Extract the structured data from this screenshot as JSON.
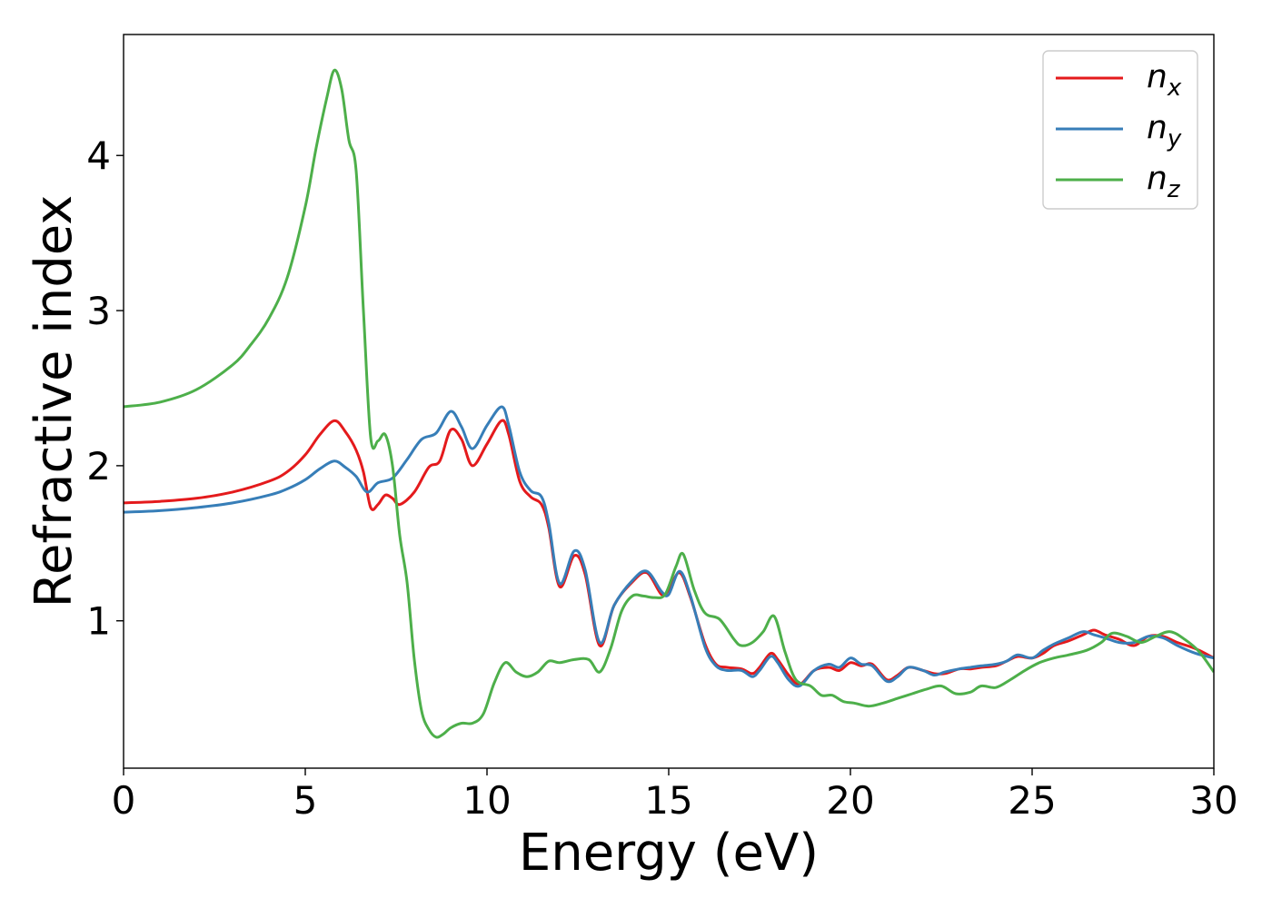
{
  "chart_data": {
    "type": "line",
    "xlabel": "Energy (eV)",
    "ylabel": "Refractive index",
    "xlim": [
      0,
      30
    ],
    "ylim": [
      0.05,
      4.78
    ],
    "xticks": [
      0,
      5,
      10,
      15,
      20,
      25,
      30
    ],
    "yticks": [
      1,
      2,
      3,
      4
    ],
    "grid": false,
    "legend_position": "top-right",
    "series": [
      {
        "name": "n_x",
        "label_base": "n",
        "label_sub": "x",
        "color": "#e41a1c",
        "x": [
          0,
          1,
          2,
          3,
          4,
          4.5,
          5,
          5.4,
          5.8,
          6.1,
          6.4,
          6.6,
          6.8,
          7.0,
          7.2,
          7.4,
          7.6,
          8.0,
          8.4,
          8.7,
          9.0,
          9.3,
          9.6,
          10.0,
          10.4,
          10.6,
          10.9,
          11.2,
          11.5,
          11.7,
          12.0,
          12.4,
          12.7,
          13.1,
          13.5,
          14.0,
          14.4,
          14.8,
          15.0,
          15.3,
          15.6,
          16.0,
          16.3,
          16.6,
          17.0,
          17.3,
          17.5,
          17.8,
          18.0,
          18.3,
          18.6,
          19.0,
          19.4,
          19.7,
          20.0,
          20.3,
          20.6,
          21.0,
          21.3,
          21.6,
          22.0,
          22.3,
          22.6,
          23.0,
          23.3,
          23.6,
          24.0,
          24.3,
          24.6,
          25.0,
          25.3,
          25.6,
          26.0,
          26.4,
          26.7,
          27.0,
          27.4,
          27.8,
          28.2,
          28.6,
          29.0,
          29.5,
          30.0
        ],
        "y": [
          1.76,
          1.77,
          1.79,
          1.83,
          1.9,
          1.96,
          2.07,
          2.2,
          2.29,
          2.22,
          2.1,
          1.96,
          1.73,
          1.75,
          1.81,
          1.79,
          1.75,
          1.83,
          1.99,
          2.03,
          2.23,
          2.17,
          2.0,
          2.14,
          2.29,
          2.2,
          1.9,
          1.8,
          1.75,
          1.6,
          1.22,
          1.42,
          1.3,
          0.84,
          1.1,
          1.25,
          1.31,
          1.17,
          1.2,
          1.31,
          1.15,
          0.85,
          0.72,
          0.7,
          0.69,
          0.66,
          0.7,
          0.79,
          0.75,
          0.65,
          0.59,
          0.68,
          0.7,
          0.68,
          0.73,
          0.71,
          0.72,
          0.62,
          0.65,
          0.7,
          0.68,
          0.66,
          0.66,
          0.69,
          0.69,
          0.7,
          0.71,
          0.74,
          0.77,
          0.76,
          0.79,
          0.84,
          0.87,
          0.91,
          0.94,
          0.91,
          0.88,
          0.84,
          0.9,
          0.9,
          0.86,
          0.82,
          0.76
        ]
      },
      {
        "name": "n_y",
        "label_base": "n",
        "label_sub": "y",
        "color": "#377eb8",
        "x": [
          0,
          1,
          2,
          3,
          4,
          4.5,
          5,
          5.4,
          5.8,
          6.1,
          6.4,
          6.7,
          7.0,
          7.4,
          7.8,
          8.2,
          8.6,
          9.0,
          9.3,
          9.6,
          10.0,
          10.4,
          10.6,
          10.9,
          11.2,
          11.5,
          11.7,
          12.0,
          12.4,
          12.7,
          13.1,
          13.5,
          14.0,
          14.4,
          14.8,
          15.0,
          15.3,
          15.6,
          16.0,
          16.3,
          16.6,
          17.0,
          17.3,
          17.5,
          17.8,
          18.0,
          18.3,
          18.6,
          19.0,
          19.4,
          19.7,
          20.0,
          20.3,
          20.6,
          21.0,
          21.3,
          21.6,
          22.0,
          22.3,
          22.6,
          23.0,
          23.3,
          23.6,
          24.0,
          24.3,
          24.6,
          25.0,
          25.3,
          25.6,
          26.0,
          26.4,
          26.7,
          27.0,
          27.4,
          27.8,
          28.2,
          28.6,
          29.0,
          29.5,
          30.0
        ],
        "y": [
          1.7,
          1.71,
          1.73,
          1.76,
          1.81,
          1.85,
          1.91,
          1.98,
          2.03,
          1.99,
          1.93,
          1.83,
          1.89,
          1.92,
          2.04,
          2.17,
          2.21,
          2.35,
          2.25,
          2.11,
          2.26,
          2.38,
          2.26,
          1.96,
          1.84,
          1.8,
          1.63,
          1.24,
          1.45,
          1.33,
          0.86,
          1.1,
          1.26,
          1.32,
          1.19,
          1.17,
          1.32,
          1.16,
          0.83,
          0.71,
          0.68,
          0.68,
          0.64,
          0.68,
          0.77,
          0.73,
          0.62,
          0.58,
          0.68,
          0.72,
          0.7,
          0.76,
          0.72,
          0.71,
          0.61,
          0.64,
          0.7,
          0.68,
          0.65,
          0.67,
          0.69,
          0.7,
          0.71,
          0.72,
          0.74,
          0.78,
          0.76,
          0.81,
          0.85,
          0.89,
          0.93,
          0.91,
          0.89,
          0.86,
          0.86,
          0.9,
          0.89,
          0.84,
          0.79,
          0.76
        ]
      },
      {
        "name": "n_z",
        "label_base": "n",
        "label_sub": "z",
        "color": "#4daf4a",
        "x": [
          0,
          1,
          2,
          3,
          3.5,
          4,
          4.5,
          5,
          5.3,
          5.6,
          5.8,
          6.0,
          6.2,
          6.4,
          6.6,
          6.8,
          7.0,
          7.2,
          7.4,
          7.6,
          7.8,
          8.0,
          8.2,
          8.4,
          8.6,
          8.8,
          9.0,
          9.3,
          9.6,
          9.9,
          10.2,
          10.5,
          10.8,
          11.1,
          11.4,
          11.7,
          12.0,
          12.4,
          12.8,
          13.1,
          13.4,
          13.7,
          14.0,
          14.3,
          14.6,
          14.9,
          15.2,
          15.4,
          15.7,
          16.0,
          16.4,
          16.8,
          17.0,
          17.3,
          17.6,
          17.9,
          18.2,
          18.5,
          18.9,
          19.2,
          19.5,
          19.8,
          20.1,
          20.5,
          20.9,
          21.3,
          21.7,
          22.1,
          22.5,
          22.9,
          23.3,
          23.6,
          24.0,
          24.4,
          24.8,
          25.2,
          25.6,
          26.0,
          26.5,
          26.9,
          27.2,
          27.6,
          28.0,
          28.4,
          28.8,
          29.2,
          29.6,
          30.0
        ],
        "y": [
          2.38,
          2.41,
          2.49,
          2.65,
          2.78,
          2.95,
          3.21,
          3.67,
          4.05,
          4.38,
          4.55,
          4.43,
          4.1,
          3.9,
          3.0,
          2.18,
          2.16,
          2.2,
          2.0,
          1.55,
          1.25,
          0.75,
          0.42,
          0.3,
          0.25,
          0.27,
          0.31,
          0.34,
          0.34,
          0.4,
          0.6,
          0.73,
          0.67,
          0.64,
          0.67,
          0.74,
          0.73,
          0.75,
          0.75,
          0.67,
          0.82,
          1.06,
          1.16,
          1.16,
          1.15,
          1.17,
          1.35,
          1.43,
          1.2,
          1.05,
          1.01,
          0.88,
          0.84,
          0.86,
          0.93,
          1.03,
          0.8,
          0.62,
          0.58,
          0.52,
          0.52,
          0.48,
          0.47,
          0.45,
          0.47,
          0.5,
          0.53,
          0.56,
          0.58,
          0.53,
          0.54,
          0.58,
          0.57,
          0.62,
          0.68,
          0.73,
          0.76,
          0.78,
          0.81,
          0.86,
          0.92,
          0.9,
          0.86,
          0.9,
          0.93,
          0.88,
          0.8,
          0.67
        ]
      }
    ]
  }
}
